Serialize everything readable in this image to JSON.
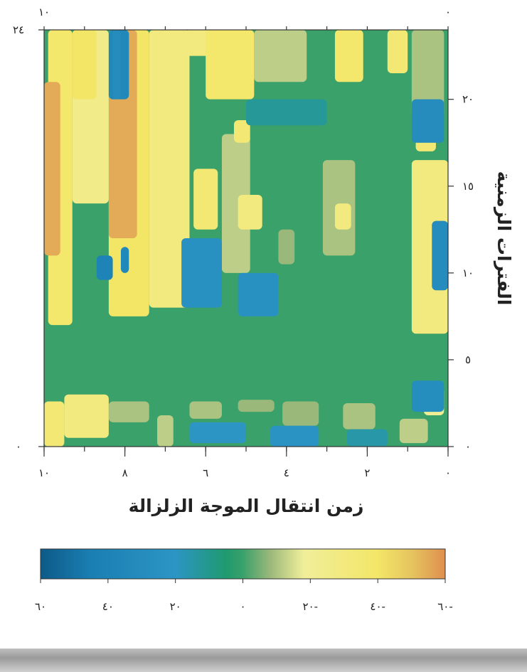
{
  "chart_data": {
    "type": "heatmap",
    "title": "",
    "xlabel": "زمن انتقال الموجة الزلزالة",
    "ylabel": "الفترات الزمنية",
    "xlim": [
      10,
      0
    ],
    "ylim": [
      0,
      24
    ],
    "x_ticks": [
      {
        "value": 10,
        "label": "١٠"
      },
      {
        "value": 8,
        "label": "٨"
      },
      {
        "value": 6,
        "label": "٦"
      },
      {
        "value": 4,
        "label": "٤"
      },
      {
        "value": 2,
        "label": "٢"
      },
      {
        "value": 0,
        "label": "٠"
      }
    ],
    "top_x_ticks": [
      {
        "value": 10,
        "label": "١٠"
      },
      {
        "value": 0,
        "label": "٠"
      }
    ],
    "y_ticks_right": [
      {
        "value": 0,
        "label": "٠"
      },
      {
        "value": 5,
        "label": "٥"
      },
      {
        "value": 10,
        "label": "١٠"
      },
      {
        "value": 15,
        "label": "١٥"
      },
      {
        "value": 20,
        "label": "٢٠"
      }
    ],
    "y_ticks_left": [
      {
        "value": 0,
        "label": "٠"
      },
      {
        "value": 24,
        "label": "٢٤"
      }
    ],
    "x_grid_ticks": [
      10,
      9,
      8,
      7,
      6,
      5,
      4,
      3,
      2,
      1,
      0
    ],
    "colorbar": {
      "min": -60,
      "max": 60,
      "ticks": [
        {
          "value": 60,
          "label": "٦٠"
        },
        {
          "value": 40,
          "label": "٤٠"
        },
        {
          "value": 20,
          "label": "٢٠"
        },
        {
          "value": 0,
          "label": "٠"
        },
        {
          "value": -20,
          "label": "٢٠-"
        },
        {
          "value": -40,
          "label": "٤٠-"
        },
        {
          "value": -60,
          "label": "٦٠-"
        }
      ],
      "colors": [
        {
          "value": 60,
          "color": "#0d5a87"
        },
        {
          "value": 45,
          "color": "#1a7fb3"
        },
        {
          "value": 20,
          "color": "#2c95c4"
        },
        {
          "value": 5,
          "color": "#1f9a6f"
        },
        {
          "value": 0,
          "color": "#3aa16b"
        },
        {
          "value": -8,
          "color": "#9ab87a"
        },
        {
          "value": -18,
          "color": "#f0ee9a"
        },
        {
          "value": -40,
          "color": "#f3e667"
        },
        {
          "value": -50,
          "color": "#e6c45f"
        },
        {
          "value": -60,
          "color": "#df8f4e"
        }
      ]
    },
    "features": [
      {
        "x": [
          9.5,
          10.0
        ],
        "y": [
          0.0,
          2.6
        ],
        "v": -35
      },
      {
        "x": [
          8.4,
          9.5
        ],
        "y": [
          0.5,
          3.0
        ],
        "v": -30
      },
      {
        "x": [
          7.4,
          8.4
        ],
        "y": [
          1.4,
          2.6
        ],
        "v": -10
      },
      {
        "x": [
          6.8,
          7.2
        ],
        "y": [
          0.0,
          1.8
        ],
        "v": -12
      },
      {
        "x": [
          5.6,
          6.4
        ],
        "y": [
          1.6,
          2.6
        ],
        "v": -10
      },
      {
        "x": [
          4.3,
          5.2
        ],
        "y": [
          2.0,
          2.7
        ],
        "v": -8
      },
      {
        "x": [
          3.2,
          4.1
        ],
        "y": [
          1.2,
          2.6
        ],
        "v": -8
      },
      {
        "x": [
          1.8,
          2.6
        ],
        "y": [
          1.0,
          2.5
        ],
        "v": -10
      },
      {
        "x": [
          0.5,
          1.2
        ],
        "y": [
          0.2,
          1.6
        ],
        "v": -12
      },
      {
        "x": [
          0.1,
          0.6
        ],
        "y": [
          1.8,
          3.4
        ],
        "v": -20
      },
      {
        "x": [
          5.0,
          6.4
        ],
        "y": [
          0.2,
          1.4
        ],
        "v": 20
      },
      {
        "x": [
          3.2,
          4.4
        ],
        "y": [
          0.0,
          1.2
        ],
        "v": 22
      },
      {
        "x": [
          0.1,
          0.9
        ],
        "y": [
          2.0,
          3.8
        ],
        "v": 28
      },
      {
        "x": [
          1.5,
          2.5
        ],
        "y": [
          0.0,
          1.0
        ],
        "v": 15
      },
      {
        "x": [
          9.3,
          9.9
        ],
        "y": [
          7.0,
          24.0
        ],
        "v": -38
      },
      {
        "x": [
          9.6,
          10.0
        ],
        "y": [
          11.0,
          21.0
        ],
        "v": -55
      },
      {
        "x": [
          7.4,
          8.4
        ],
        "y": [
          7.5,
          24.0
        ],
        "v": -40
      },
      {
        "x": [
          7.7,
          8.4
        ],
        "y": [
          12.0,
          24.0
        ],
        "v": -55
      },
      {
        "x": [
          6.4,
          7.4
        ],
        "y": [
          8.0,
          24.0
        ],
        "v": -30
      },
      {
        "x": [
          8.4,
          9.3
        ],
        "y": [
          14.0,
          24.0
        ],
        "v": -25
      },
      {
        "x": [
          8.7,
          9.3
        ],
        "y": [
          20.0,
          24.0
        ],
        "v": -40
      },
      {
        "x": [
          7.9,
          8.4
        ],
        "y": [
          20.0,
          24.0
        ],
        "v": 35
      },
      {
        "x": [
          7.9,
          8.1
        ],
        "y": [
          10.0,
          11.5
        ],
        "v": 35
      },
      {
        "x": [
          5.5,
          6.5
        ],
        "y": [
          22.5,
          24.0
        ],
        "v": -30
      },
      {
        "x": [
          4.8,
          6.0
        ],
        "y": [
          20.0,
          24.0
        ],
        "v": -38
      },
      {
        "x": [
          3.5,
          4.8
        ],
        "y": [
          21.0,
          24.0
        ],
        "v": -12
      },
      {
        "x": [
          2.1,
          2.8
        ],
        "y": [
          21.0,
          24.0
        ],
        "v": -38
      },
      {
        "x": [
          1.0,
          1.5
        ],
        "y": [
          21.5,
          24.0
        ],
        "v": -35
      },
      {
        "x": [
          0.1,
          0.9
        ],
        "y": [
          19.0,
          24.0
        ],
        "v": -10
      },
      {
        "x": [
          5.7,
          6.3
        ],
        "y": [
          12.5,
          16.0
        ],
        "v": -35
      },
      {
        "x": [
          4.9,
          5.6
        ],
        "y": [
          10.0,
          18.0
        ],
        "v": -12
      },
      {
        "x": [
          4.9,
          5.3
        ],
        "y": [
          17.5,
          18.8
        ],
        "v": -35
      },
      {
        "x": [
          4.6,
          5.2
        ],
        "y": [
          12.5,
          14.5
        ],
        "v": -30
      },
      {
        "x": [
          3.8,
          4.2
        ],
        "y": [
          10.5,
          12.5
        ],
        "v": -8
      },
      {
        "x": [
          2.3,
          3.1
        ],
        "y": [
          11.0,
          16.5
        ],
        "v": -10
      },
      {
        "x": [
          2.4,
          2.8
        ],
        "y": [
          12.5,
          14.0
        ],
        "v": -30
      },
      {
        "x": [
          0.0,
          0.9
        ],
        "y": [
          6.5,
          16.5
        ],
        "v": -30
      },
      {
        "x": [
          0.3,
          0.8
        ],
        "y": [
          17.0,
          18.5
        ],
        "v": -35
      },
      {
        "x": [
          5.6,
          6.6
        ],
        "y": [
          8.0,
          12.0
        ],
        "v": 25
      },
      {
        "x": [
          4.2,
          5.2
        ],
        "y": [
          7.5,
          10.0
        ],
        "v": 25
      },
      {
        "x": [
          0.1,
          0.9
        ],
        "y": [
          17.5,
          20.0
        ],
        "v": 30
      },
      {
        "x": [
          0.0,
          0.4
        ],
        "y": [
          9.0,
          13.0
        ],
        "v": 30
      },
      {
        "x": [
          3.0,
          5.0
        ],
        "y": [
          18.5,
          20.0
        ],
        "v": 12
      },
      {
        "x": [
          8.1,
          8.3
        ],
        "y": [
          20.0,
          24.0
        ],
        "v": 30
      },
      {
        "x": [
          8.3,
          8.7
        ],
        "y": [
          9.6,
          11.0
        ],
        "v": 40
      }
    ]
  }
}
